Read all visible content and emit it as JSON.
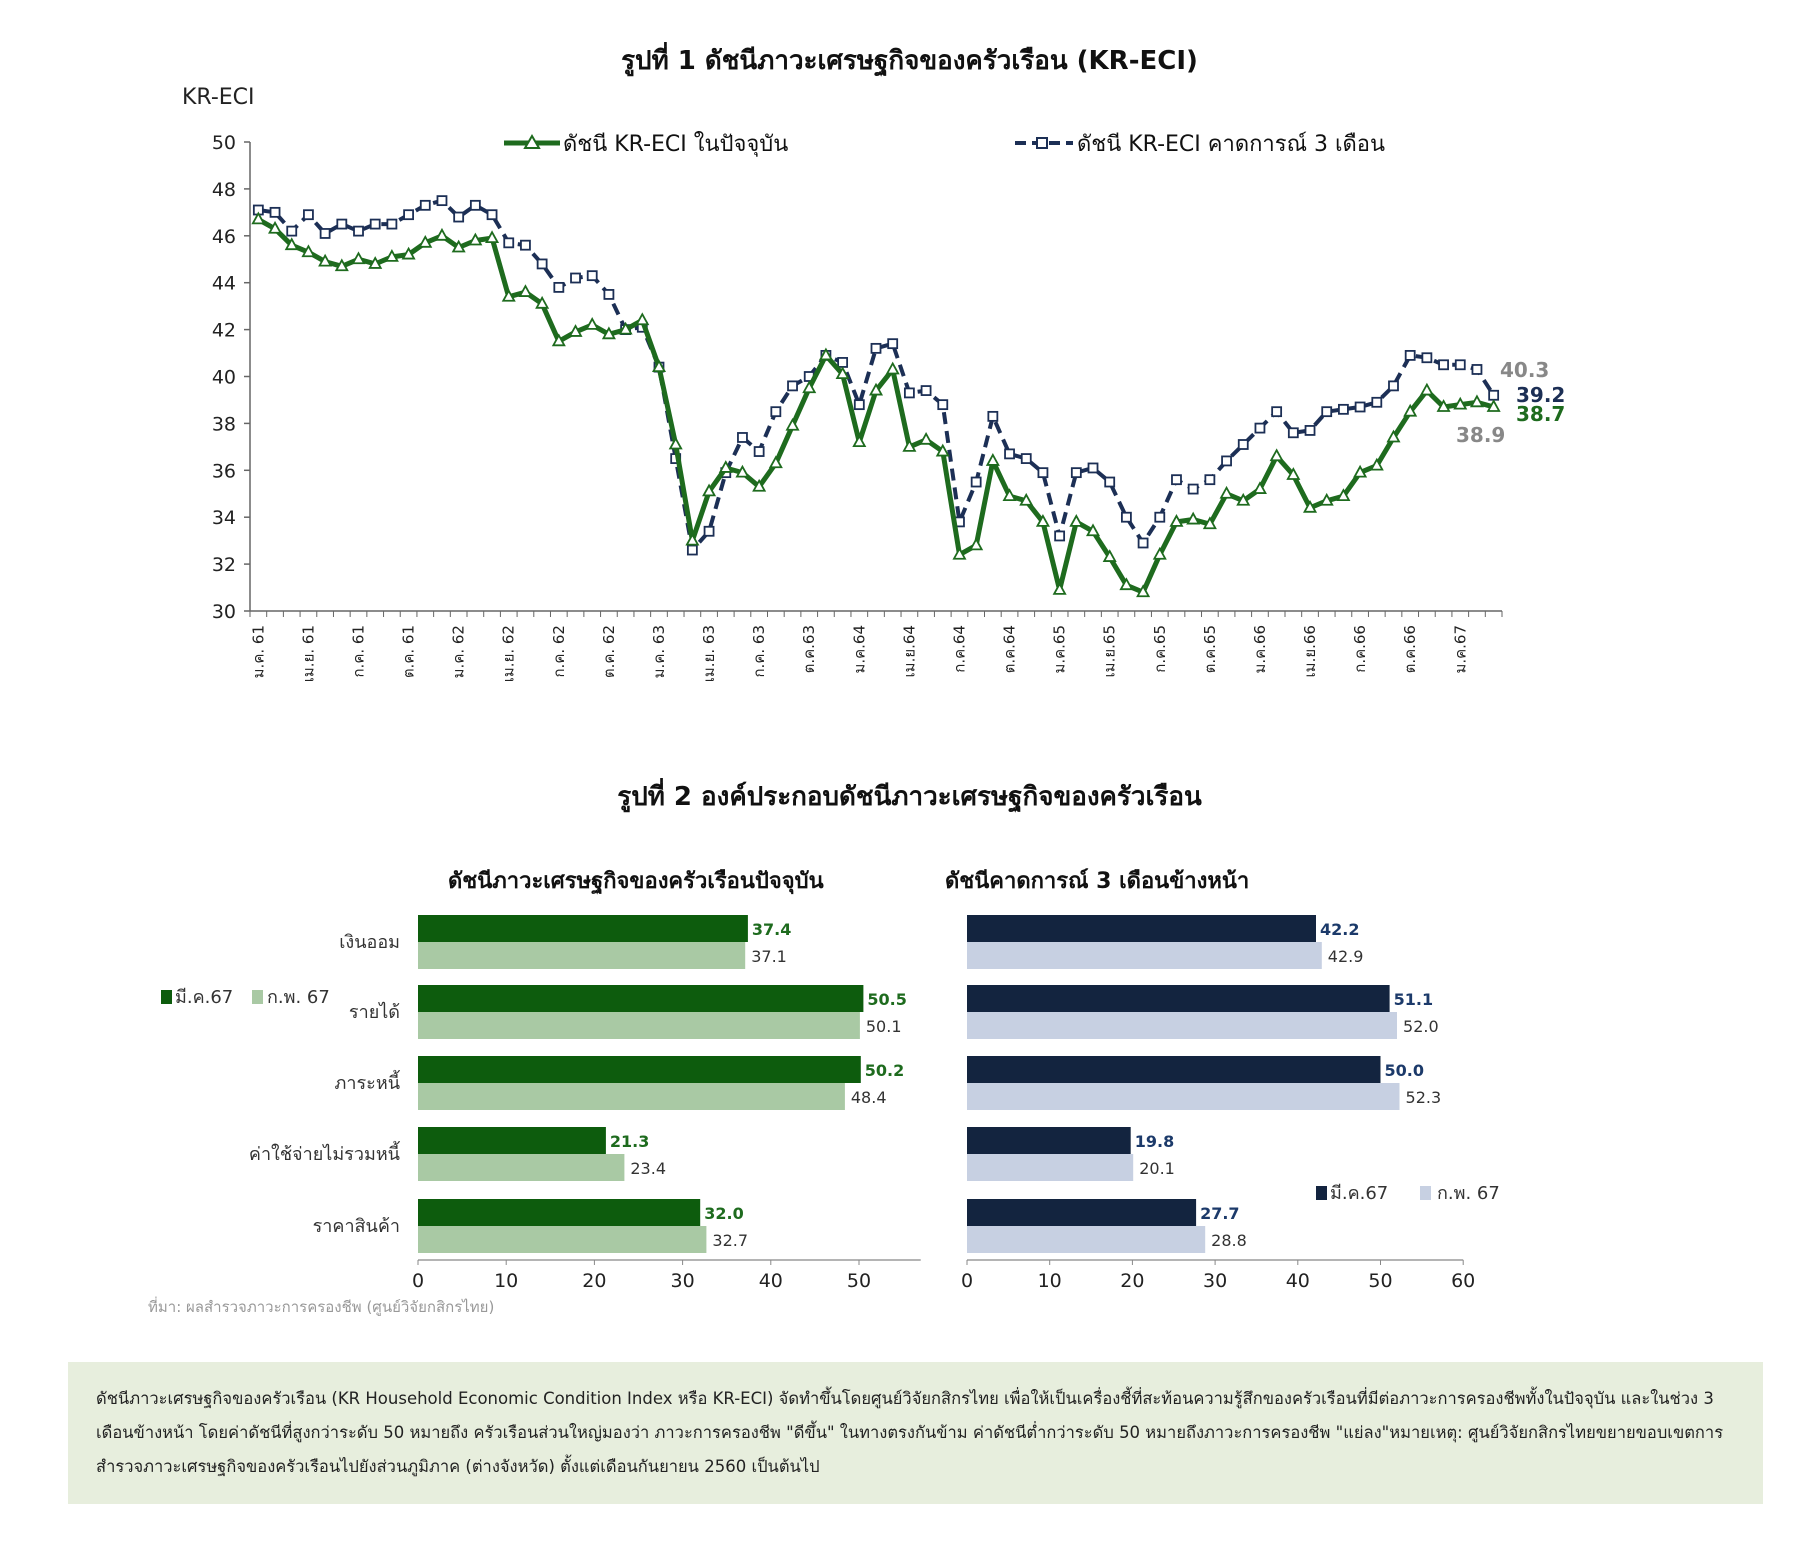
{
  "figure1": {
    "title": "รูปที่ 1 ดัชนีภาวะเศรษฐกิจของครัวเรือน (KR-ECI)",
    "y_axis_title": "KR-ECI",
    "legend": {
      "current": "ดัชนี KR-ECI ในปัจจุบัน",
      "expected": "ดัชนี KR-ECI คาดการณ์ 3 เดือน"
    },
    "end_labels": {
      "expected_prev": "40.3",
      "expected_last": "39.2",
      "current_last": "38.7",
      "current_prev": "38.9"
    }
  },
  "figure2": {
    "title": "รูปที่ 2 องค์ประกอบดัชนีภาวะเศรษฐกิจของครัวเรือน",
    "left_title": "ดัชนีภาวะเศรษฐกิจของครัวเรือนปัจจุบัน",
    "right_title": "ดัชนีคาดการณ์ 3 เดือนข้างหน้า",
    "legend": {
      "series_a": "มี.ค.67",
      "series_b": "ก.พ. 67"
    },
    "source": "ที่มา: ผลสำรวจภาวะการครองชีพ (ศูนย์วิจัยกสิกรไทย)"
  },
  "note": "ดัชนีภาวะเศรษฐกิจของครัวเรือน (KR Household Economic Condition Index หรือ KR-ECI) จัดทำขึ้นโดยศูนย์วิจัยกสิกรไทย เพื่อให้เป็นเครื่องชี้ที่สะท้อนความรู้สึกของครัวเรือนที่มีต่อภาวะการครองชีพทั้งในปัจจุบัน และในช่วง 3 เดือนข้างหน้า โดยค่าดัชนีที่สูงกว่าระดับ 50 หมายถึง ครัวเรือนส่วนใหญ่มองว่า ภาวะการครองชีพ \"ดีขึ้น\" ในทางตรงกันข้าม ค่าดัชนีต่ำกว่าระดับ 50 หมายถึงภาวะการครองชีพ \"แย่ลง\"หมายเหตุ: ศูนย์วิจัยกสิกรไทยขยายขอบเขตการสำรวจภาวะเศรษฐกิจของครัวเรือนไปยังส่วนภูมิภาค (ต่างจังหวัด) ตั้งแต่เดือนกันยายน 2560 เป็นต้นไป",
  "colors": {
    "current_line": "#1e6b1e",
    "expected_line": "#1c2f55",
    "bar_current_dark": "#0d5c0d",
    "bar_current_light": "#a9c9a4",
    "bar_expected_dark": "#13243f",
    "bar_expected_light": "#c7d0e2",
    "end_label_gray": "#888888",
    "note_bg": "#e7eedd"
  },
  "chart_data": [
    {
      "type": "line",
      "title": "รูปที่ 1 ดัชนีภาวะเศรษฐกิจของครัวเรือน (KR-ECI)",
      "ylabel": "KR-ECI",
      "xlabel": "",
      "ylim": [
        30,
        50
      ],
      "y_ticks": [
        30,
        32,
        34,
        36,
        38,
        40,
        42,
        44,
        46,
        48,
        50
      ],
      "x_tick_labels": [
        "ม.ค. 61",
        "เม.ย. 61",
        "ก.ค. 61",
        "ต.ค. 61",
        "ม.ค. 62",
        "เม.ย. 62",
        "ก.ค. 62",
        "ต.ค. 62",
        "ม.ค. 63",
        "เม.ย. 63",
        "ก.ค. 63",
        "ต.ค.63",
        "ม.ค.64",
        "เม.ย.64",
        "ก.ค.64",
        "ต.ค.64",
        "ม.ค.65",
        "เม.ย.65",
        "ก.ค.65",
        "ต.ค.65",
        "ม.ค.66",
        "เม.ย.66",
        "ก.ค.66",
        "ต.ค.66",
        "ม.ค.67"
      ],
      "x_tick_every": 3,
      "n_points": 75,
      "legend_position": "top",
      "grid": false,
      "series": [
        {
          "name": "ดัชนี KR-ECI ในปัจจุบัน",
          "marker": "triangle",
          "values": [
            46.7,
            46.3,
            45.6,
            45.3,
            44.9,
            44.7,
            45.0,
            44.8,
            45.1,
            45.2,
            45.7,
            46.0,
            45.5,
            45.8,
            45.9,
            43.4,
            43.6,
            43.1,
            41.5,
            41.9,
            42.2,
            41.8,
            42.0,
            42.4,
            40.4,
            37.1,
            33.0,
            35.1,
            36.1,
            35.9,
            35.3,
            36.3,
            37.9,
            39.5,
            40.9,
            40.1,
            37.2,
            39.4,
            40.3,
            37.0,
            37.3,
            36.8,
            32.4,
            32.8,
            36.4,
            34.9,
            34.7,
            33.8,
            30.9,
            33.8,
            33.4,
            32.3,
            31.1,
            30.8,
            32.4,
            33.8,
            33.9,
            33.7,
            35.0,
            34.7,
            35.2,
            36.6,
            35.8,
            34.4,
            34.7,
            34.9,
            35.9,
            36.2,
            37.4,
            38.5,
            39.4,
            38.7,
            38.8,
            38.9,
            38.7
          ]
        },
        {
          "name": "ดัชนี KR-ECI คาดการณ์ 3 เดือน",
          "marker": "square",
          "values": [
            47.1,
            47.0,
            46.2,
            46.9,
            46.1,
            46.5,
            46.2,
            46.5,
            46.5,
            46.9,
            47.3,
            47.5,
            46.8,
            47.3,
            46.9,
            45.7,
            45.6,
            44.8,
            43.8,
            44.2,
            44.3,
            43.5,
            42.0,
            42.1,
            40.4,
            36.5,
            32.6,
            33.4,
            35.9,
            37.4,
            36.8,
            38.5,
            39.6,
            40.0,
            40.9,
            40.6,
            38.8,
            41.2,
            41.4,
            39.3,
            39.4,
            38.8,
            33.8,
            35.5,
            38.3,
            36.7,
            36.5,
            35.9,
            33.2,
            35.9,
            36.1,
            35.5,
            34.0,
            32.9,
            34.0,
            35.6,
            35.2,
            35.6,
            36.4,
            37.1,
            37.8,
            38.5,
            37.6,
            37.7,
            38.5,
            38.6,
            38.7,
            38.9,
            39.6,
            40.9,
            40.8,
            40.5,
            40.5,
            40.3,
            39.2
          ]
        }
      ]
    },
    {
      "type": "bar",
      "orientation": "horizontal",
      "title": "ดัชนีภาวะเศรษฐกิจของครัวเรือนปัจจุบัน",
      "categories": [
        "เงินออม",
        "รายได้",
        "ภาระหนี้",
        "ค่าใช้จ่ายไม่รวมหนี้",
        "ราคาสินค้า"
      ],
      "xlim": [
        0,
        57
      ],
      "x_ticks": [
        0,
        10,
        20,
        30,
        40,
        50
      ],
      "legend_position": "left",
      "series": [
        {
          "name": "มี.ค.67",
          "values": [
            37.4,
            50.5,
            50.2,
            21.3,
            32.0
          ]
        },
        {
          "name": "ก.พ. 67",
          "values": [
            37.1,
            50.1,
            48.4,
            23.4,
            32.7
          ]
        }
      ]
    },
    {
      "type": "bar",
      "orientation": "horizontal",
      "title": "ดัชนีคาดการณ์ 3 เดือนข้างหน้า",
      "categories": [
        "เงินออม",
        "รายได้",
        "ภาระหนี้",
        "ค่าใช้จ่ายไม่รวมหนี้",
        "ราคาสินค้า"
      ],
      "xlim": [
        0,
        60
      ],
      "x_ticks": [
        0,
        10,
        20,
        30,
        40,
        50,
        60
      ],
      "legend_position": "right",
      "series": [
        {
          "name": "มี.ค.67",
          "values": [
            42.2,
            51.1,
            50.0,
            19.8,
            27.7
          ]
        },
        {
          "name": "ก.พ. 67",
          "values": [
            42.9,
            52.0,
            52.3,
            20.1,
            28.8
          ]
        }
      ]
    }
  ]
}
